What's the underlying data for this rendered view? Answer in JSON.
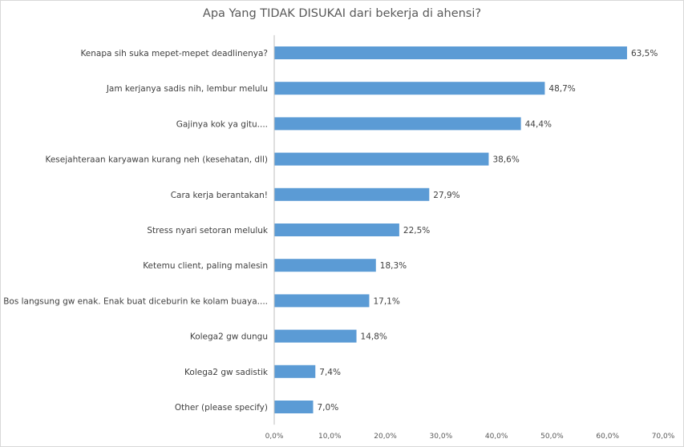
{
  "chart_data": {
    "type": "bar",
    "orientation": "horizontal",
    "title": "Apa Yang TIDAK DISUKAI dari bekerja di ahensi?",
    "xlabel": "",
    "ylabel": "",
    "xlim": [
      0,
      70
    ],
    "bar_color": "#5b9bd5",
    "categories": [
      "Kenapa sih suka mepet-mepet deadlinenya?",
      "Jam kerjanya sadis nih, lembur melulu",
      "Gajinya kok ya gitu....",
      "Kesejahteraan karyawan kurang neh (kesehatan, dll)",
      "Cara kerja berantakan!",
      "Stress nyari setoran meluluk",
      "Ketemu client, paling malesin",
      "Bos langsung gw enak. Enak buat diceburin ke kolam buaya....",
      "Kolega2 gw dungu",
      "Kolega2 gw sadistik",
      "Other (please specify)"
    ],
    "values": [
      63.5,
      48.7,
      44.4,
      38.6,
      27.9,
      22.5,
      18.3,
      17.1,
      14.8,
      7.4,
      7.0
    ],
    "value_labels": [
      "63,5%",
      "48,7%",
      "44,4%",
      "38,6%",
      "27,9%",
      "22,5%",
      "18,3%",
      "17,1%",
      "14,8%",
      "7,4%",
      "7,0%"
    ],
    "x_ticks": [
      0,
      10,
      20,
      30,
      40,
      50,
      60,
      70
    ],
    "x_tick_labels": [
      "0,0%",
      "10,0%",
      "20,0%",
      "30,0%",
      "40,0%",
      "50,0%",
      "60,0%",
      "70,0%"
    ]
  }
}
